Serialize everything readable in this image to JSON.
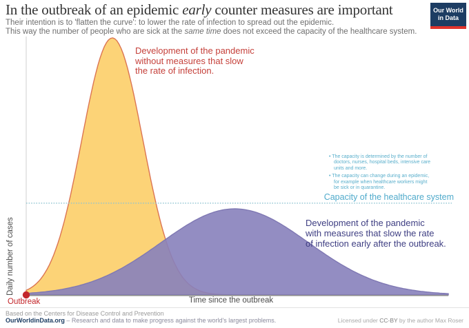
{
  "header": {
    "title": {
      "part1": "In the outbreak of an epidemic ",
      "italic": "early",
      "part2": " counter measures are important"
    },
    "subtitle_line1": "Their intention is to 'flatten the curve': to lower the rate of infection to spread out the epidemic.",
    "subtitle_line2": {
      "part1": "This way the number of people who are sick at the ",
      "italic": "same time",
      "part2": " does not exceed the capacity of the healthcare system."
    },
    "logo": {
      "line1": "Our World",
      "line2": "in Data",
      "bg": "#1D3D63",
      "stripe": "#E0332C"
    }
  },
  "axes": {
    "y_label": "Daily number of cases",
    "x_label": "Time since the outbreak"
  },
  "annotations": {
    "no_measures": {
      "color": "#C5403A",
      "lines": [
        "Development of the pandemic",
        "without measures that slow",
        "the rate of infection."
      ]
    },
    "with_measures": {
      "color": "#3E3E82",
      "lines": [
        "Development of the pandemic",
        "with measures that slow the rate",
        "of infection early after the outbreak."
      ]
    },
    "capacity_bullets": [
      "The capacity is determined by the number of doctors, nurses, hospital beds, intensive care units and more.",
      "The capacity can change during an epidemic, for example when healthcare workers might be sick or in quarantine."
    ],
    "capacity_label": "Capacity of the healthcare system",
    "outbreak_label": "Outbreak"
  },
  "footer": {
    "source": "Based on the Centers for Disease Control and Prevention",
    "site": "OurWorldinData.org",
    "tagline": " – Research and data to make progress against the world's largest problems.",
    "license_prefix": "Licensed under ",
    "license_cc": "CC-BY",
    "license_suffix": " by the author Max Roser"
  },
  "chart_data": {
    "type": "area",
    "title": "In the outbreak of an epidemic early counter measures are important",
    "xlabel": "Time since the outbreak",
    "ylabel": "Daily number of cases",
    "grid": false,
    "axis_ticks": "none (qualitative illustrative chart)",
    "x_range": [
      0,
      100
    ],
    "y_range": [
      0,
      1.05
    ],
    "capacity_line": {
      "label": "Capacity of the healthcare system",
      "level": 0.357,
      "style": "dotted",
      "color": "#8FC4D1",
      "label_color": "#4FAACB"
    },
    "origin_marker": {
      "label": "Outbreak",
      "x": 0,
      "y": 0,
      "color": "#C3272B"
    },
    "x_samples": [
      0,
      5,
      10,
      15,
      20,
      25,
      30,
      35,
      40,
      45,
      50,
      55,
      60,
      65,
      70,
      75,
      80,
      85,
      90,
      95,
      100
    ],
    "series": [
      {
        "id": "curve-no-measures",
        "name": "Development of the pandemic without measures that slow the rate of infection.",
        "shape": "gaussian",
        "model": {
          "peak_x": 20.4,
          "sigma": 7.2,
          "peak_y": 1.0
        },
        "fill": "#FCD377",
        "stroke": "#DB7452",
        "opacity": 1,
        "values": [
          0.018,
          0.101,
          0.353,
          0.755,
          0.998,
          0.815,
          0.411,
          0.128,
          0.025,
          0.003,
          0.001,
          0,
          0,
          0,
          0,
          0,
          0,
          0,
          0,
          0,
          0
        ]
      },
      {
        "id": "curve-with-measures",
        "name": "Development of the pandemic with measures that slow the rate of infection early after the outbreak.",
        "shape": "gaussian",
        "model": {
          "peak_x": 49.4,
          "sigma": 17.5,
          "peak_y": 0.335
        },
        "fill": "#8781BB",
        "stroke": "#7F78B3",
        "opacity": 0.9,
        "values": [
          0.006,
          0.013,
          0.027,
          0.049,
          0.082,
          0.127,
          0.181,
          0.239,
          0.29,
          0.325,
          0.335,
          0.318,
          0.279,
          0.225,
          0.168,
          0.115,
          0.073,
          0.042,
          0.023,
          0.011,
          0.005
        ]
      }
    ]
  }
}
